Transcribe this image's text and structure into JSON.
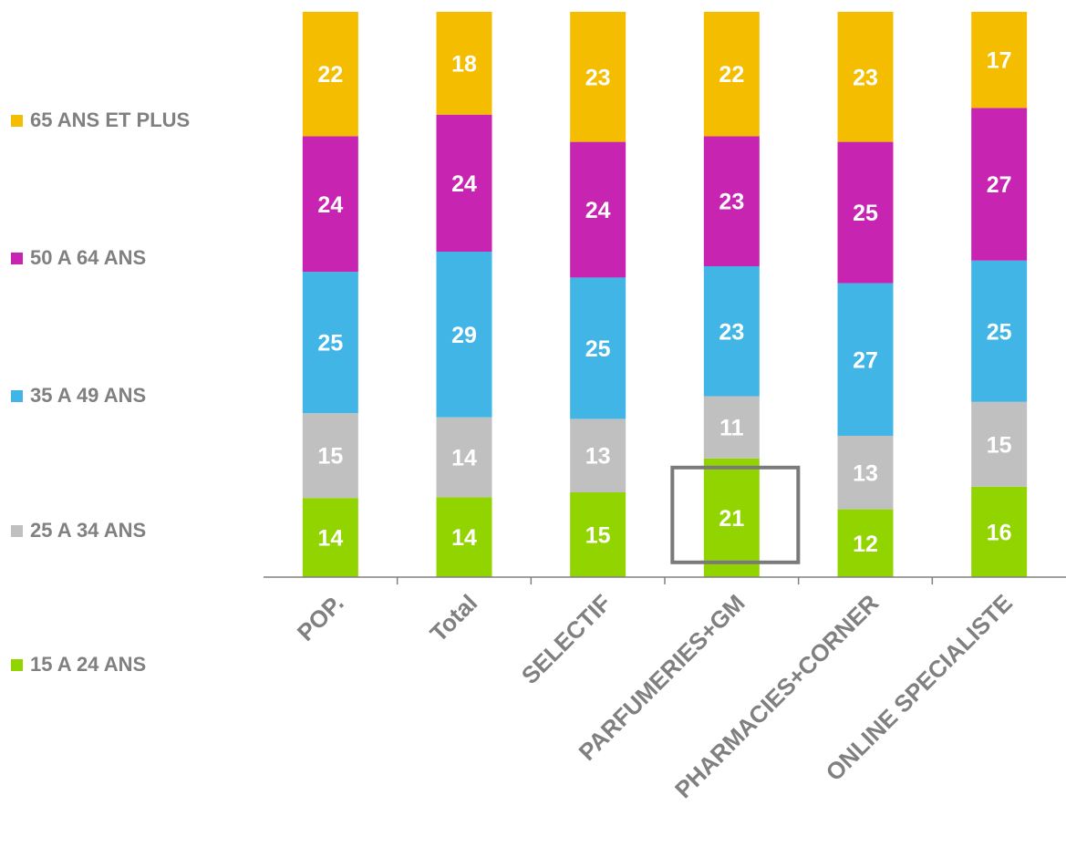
{
  "chart_data": {
    "type": "bar",
    "stacked": true,
    "categories": [
      "POP.",
      "Total",
      "SELECTIF",
      "PARFUMERIES+GM",
      "PHARMACIES+CORNER",
      "ONLINE SPECIALISTE"
    ],
    "series": [
      {
        "name": "15 A 24 ANS",
        "color": "#92d400",
        "values": [
          14,
          14,
          15,
          21,
          12,
          16
        ]
      },
      {
        "name": "25 A 34 ANS",
        "color": "#c0c0c0",
        "values": [
          15,
          14,
          13,
          11,
          13,
          15
        ]
      },
      {
        "name": "35 A 49 ANS",
        "color": "#41b6e6",
        "values": [
          25,
          29,
          25,
          23,
          27,
          25
        ]
      },
      {
        "name": "50 A 64 ANS",
        "color": "#c724b1",
        "values": [
          24,
          24,
          24,
          23,
          25,
          27
        ]
      },
      {
        "name": "65 ANS ET PLUS",
        "color": "#f5bd00",
        "values": [
          22,
          18,
          23,
          22,
          23,
          17
        ]
      }
    ],
    "ylim": [
      0,
      100
    ],
    "legend_position": "left",
    "highlight": {
      "category": "PARFUMERIES+GM",
      "series": "15 A 24 ANS"
    },
    "axis_color": "#808080",
    "label_color": "#ffffff",
    "legend_text_color": "#808080"
  }
}
